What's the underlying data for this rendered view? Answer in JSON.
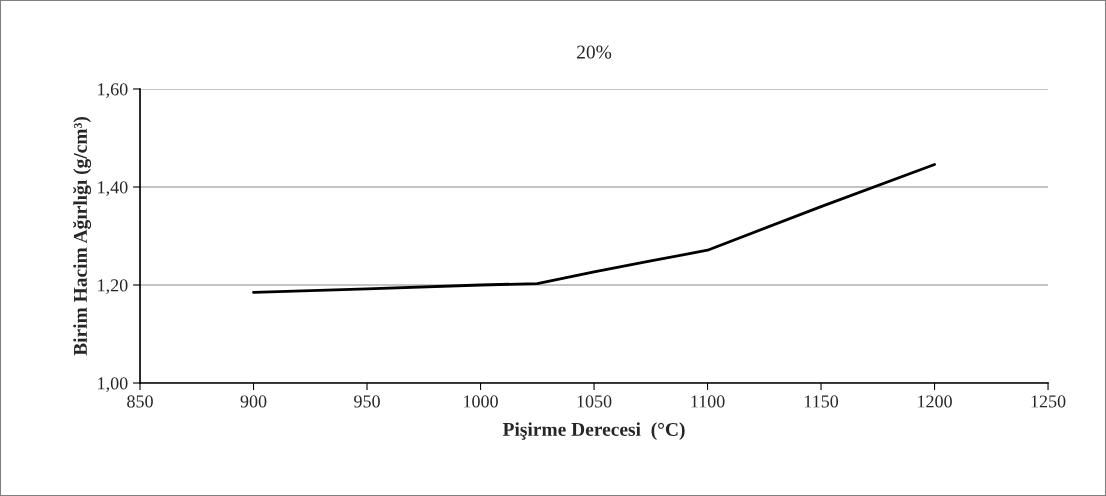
{
  "chart_data": {
    "type": "line",
    "title": "20%",
    "xlabel": "Pişirme Derecesi  (°C)",
    "ylabel": "Birim Hacim Ağırlığı (g/cm³)",
    "x": [
      900,
      950,
      1000,
      1025,
      1050,
      1075,
      1100,
      1150,
      1200
    ],
    "series": [
      {
        "color": "#000000",
        "values": [
          1.185,
          1.192,
          1.2,
          1.203,
          1.227,
          1.249,
          1.271,
          1.36,
          1.446
        ]
      }
    ],
    "xlim": [
      850,
      1250
    ],
    "xticks": [
      850,
      900,
      950,
      1000,
      1050,
      1100,
      1150,
      1200,
      1250
    ],
    "ylim": [
      1.0,
      1.6
    ],
    "yticks": [
      {
        "value": 1.0,
        "label": "1,00"
      },
      {
        "value": 1.2,
        "label": "1,20"
      },
      {
        "value": 1.4,
        "label": "1,40"
      },
      {
        "value": 1.6,
        "label": "1,60"
      }
    ],
    "grid": "y",
    "marker": "none",
    "line_style": "solid"
  }
}
